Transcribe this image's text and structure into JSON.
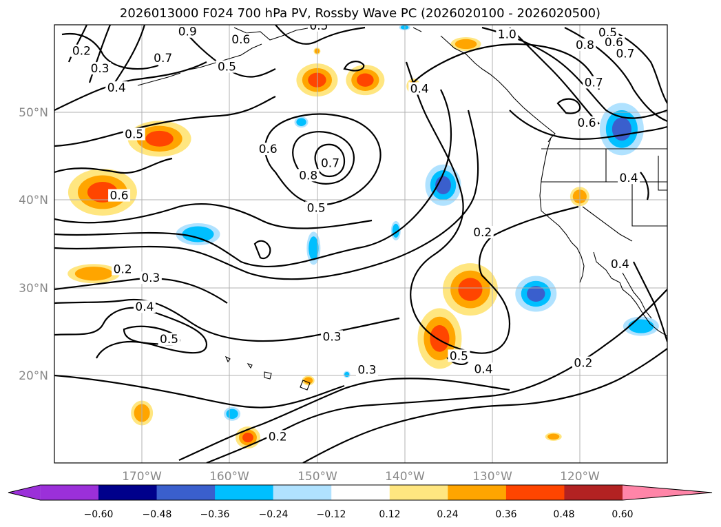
{
  "title": "2026013000 F024 700 hPa PV, Rossby Wave PC (2026020100 - 2026020500)",
  "lon_ticks": [
    "170°W",
    "160°W",
    "150°W",
    "140°W",
    "130°W",
    "120°W"
  ],
  "lat_ticks": [
    "50°N",
    "40°N",
    "30°N",
    "20°N"
  ],
  "colorbar": {
    "ticks": [
      "−0.60",
      "−0.48",
      "−0.36",
      "−0.24",
      "−0.12",
      "0.12",
      "0.24",
      "0.36",
      "0.48",
      "0.60"
    ],
    "colors": [
      "#9b30d9",
      "#00008b",
      "#3a5fcd",
      "#00bfff",
      "#b0e2ff",
      "#ffffff",
      "#ffe680",
      "#ffa500",
      "#ff4500",
      "#b22222",
      "#ff85a8"
    ]
  },
  "colors": {
    "pos_light": "#ffe680",
    "pos_mid": "#ffa500",
    "pos_strong": "#ff4500",
    "neg_light": "#b0e2ff",
    "neg_mid": "#00bfff",
    "neg_strong": "#3a5fcd"
  },
  "contour_labels": [
    {
      "text": "0.5",
      "lon": -149.8,
      "lat": 59.7
    },
    {
      "text": "1.0",
      "lon": -128.3,
      "lat": 58.7
    },
    {
      "text": "0.5",
      "lon": -116.8,
      "lat": 58.9
    },
    {
      "text": "0.6",
      "lon": -116.1,
      "lat": 57.8
    },
    {
      "text": "0.7",
      "lon": -114.8,
      "lat": 56.5
    },
    {
      "text": "0.8",
      "lon": -119.4,
      "lat": 57.5
    },
    {
      "text": "0.7",
      "lon": -118.4,
      "lat": 53.2
    },
    {
      "text": "0.6",
      "lon": -119.2,
      "lat": 48.6
    },
    {
      "text": "0.4",
      "lon": -138.3,
      "lat": 52.5
    },
    {
      "text": "0.2",
      "lon": -176.9,
      "lat": 56.8
    },
    {
      "text": "0.3",
      "lon": -174.8,
      "lat": 54.8
    },
    {
      "text": "0.4",
      "lon": -172.9,
      "lat": 52.6
    },
    {
      "text": "0.7",
      "lon": -167.6,
      "lat": 56.0
    },
    {
      "text": "0.9",
      "lon": -164.8,
      "lat": 59.0
    },
    {
      "text": "0.6",
      "lon": -158.7,
      "lat": 58.1
    },
    {
      "text": "0.5",
      "lon": -160.3,
      "lat": 55.0
    },
    {
      "text": "0.5",
      "lon": -170.9,
      "lat": 47.3
    },
    {
      "text": "0.6",
      "lon": -172.6,
      "lat": 40.3
    },
    {
      "text": "0.6",
      "lon": -155.6,
      "lat": 45.6
    },
    {
      "text": "0.8",
      "lon": -151.0,
      "lat": 42.6
    },
    {
      "text": "0.7",
      "lon": -148.5,
      "lat": 44.0
    },
    {
      "text": "0.5",
      "lon": -150.1,
      "lat": 38.9
    },
    {
      "text": "0.2",
      "lon": -172.2,
      "lat": 31.9
    },
    {
      "text": "0.3",
      "lon": -169.0,
      "lat": 30.9
    },
    {
      "text": "0.4",
      "lon": -169.7,
      "lat": 27.6
    },
    {
      "text": "0.5",
      "lon": -166.9,
      "lat": 23.9
    },
    {
      "text": "0.3",
      "lon": -148.3,
      "lat": 24.2
    },
    {
      "text": "0.3",
      "lon": -144.3,
      "lat": 20.4
    },
    {
      "text": "0.2",
      "lon": -131.1,
      "lat": 36.1
    },
    {
      "text": "0.5",
      "lon": -133.8,
      "lat": 22.0
    },
    {
      "text": "0.4",
      "lon": -131.0,
      "lat": 20.5
    },
    {
      "text": "0.2",
      "lon": -119.6,
      "lat": 21.2
    },
    {
      "text": "0.2",
      "lon": -154.5,
      "lat": 12.8
    },
    {
      "text": "0.4",
      "lon": -115.4,
      "lat": 32.5
    },
    {
      "text": "0.4",
      "lon": -114.4,
      "lat": 42.3
    }
  ]
}
